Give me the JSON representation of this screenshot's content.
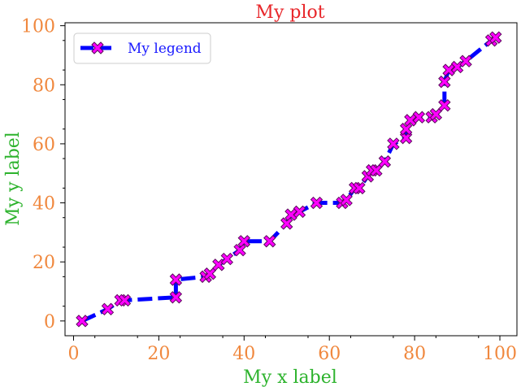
{
  "chart_data": {
    "type": "line",
    "title": "My plot",
    "xlabel": "My x label",
    "ylabel": "My y label",
    "xlim": [
      -2,
      104
    ],
    "ylim": [
      -5,
      101
    ],
    "xticks": [
      0,
      20,
      40,
      60,
      80,
      100
    ],
    "yticks": [
      0,
      20,
      40,
      60,
      80,
      100
    ],
    "xtick_labels": [
      "0",
      "20",
      "40",
      "60",
      "80",
      "100"
    ],
    "ytick_labels": [
      "0",
      "20",
      "40",
      "60",
      "80",
      "100"
    ],
    "grid": false,
    "legend_position": "top-left",
    "series": [
      {
        "name": "My legend",
        "line_color": "#0000ff",
        "line_style": "dashed",
        "marker": "X",
        "marker_face": "#ff00ff",
        "marker_edge": "#5a0a5a",
        "x": [
          2,
          8,
          11,
          12,
          24,
          24,
          31,
          32,
          34,
          36,
          39,
          40,
          46,
          50,
          51,
          53,
          57,
          63,
          64,
          66,
          67,
          69,
          70,
          71,
          73,
          75,
          78,
          78,
          79,
          81,
          84,
          85,
          87,
          87,
          88,
          90,
          92,
          98,
          99
        ],
        "y": [
          0,
          4,
          7,
          7,
          8,
          14,
          15,
          16,
          19,
          21,
          24,
          27,
          27,
          33,
          36,
          37,
          40,
          40,
          41,
          45,
          45,
          49,
          51,
          51,
          54,
          60,
          62,
          65,
          68,
          69,
          69,
          70,
          73,
          81,
          85,
          86,
          88,
          95,
          96
        ]
      }
    ]
  }
}
